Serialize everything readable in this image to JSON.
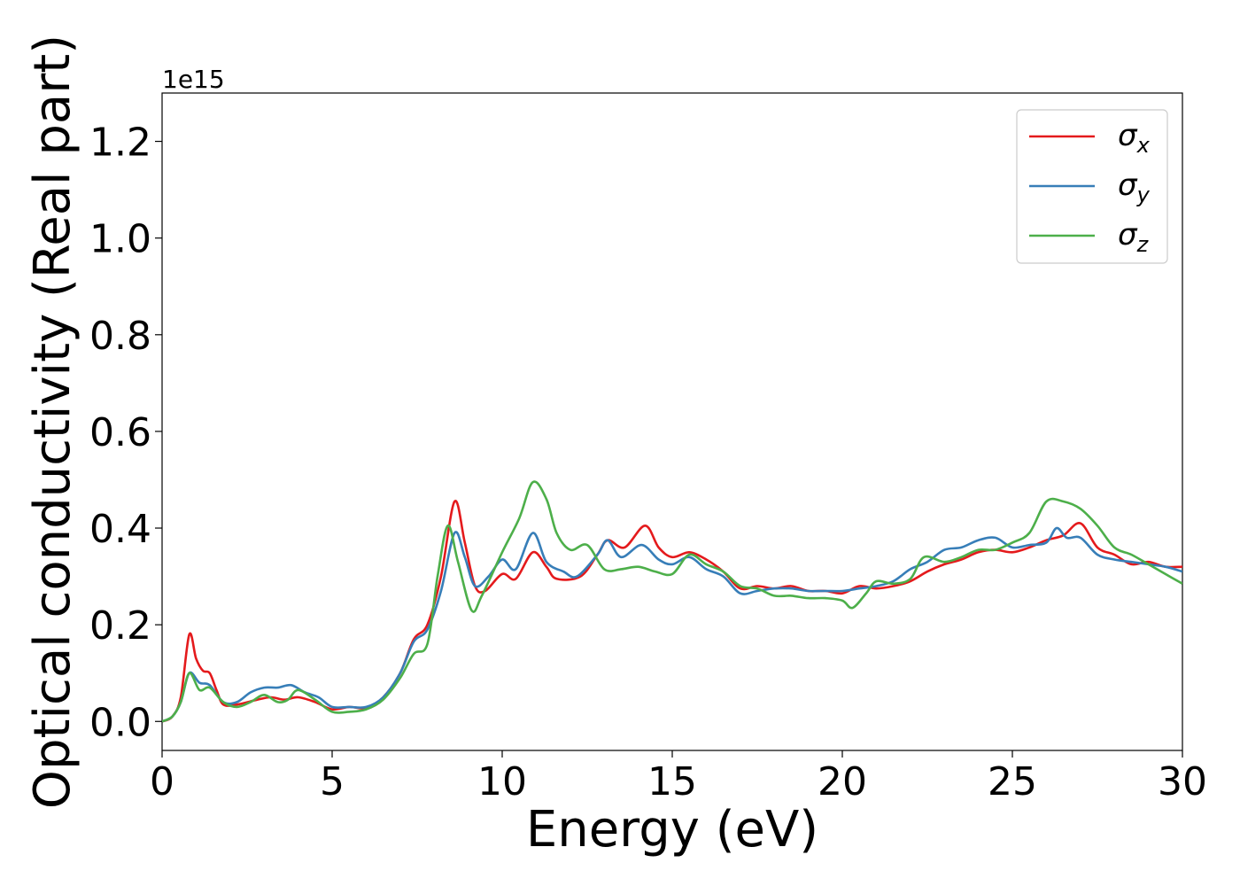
{
  "chart_data": {
    "type": "line",
    "xlabel": "Energy (eV)",
    "ylabel": "Optical conductivity (Real part)",
    "y_offset_label": "1e15",
    "xlim": [
      0,
      30
    ],
    "ylim": [
      -0.06,
      1.3
    ],
    "x_ticks": [
      0,
      5,
      10,
      15,
      20,
      25,
      30
    ],
    "x_tick_labels": [
      "0",
      "5",
      "10",
      "15",
      "20",
      "25",
      "30"
    ],
    "y_ticks": [
      0.0,
      0.2,
      0.4,
      0.6,
      0.8,
      1.0,
      1.2
    ],
    "y_tick_labels": [
      "0.0",
      "0.2",
      "0.4",
      "0.6",
      "0.8",
      "1.0",
      "1.2"
    ],
    "grid": false,
    "legend_position": "top-right",
    "series": [
      {
        "name": "σ",
        "sub": "x",
        "color": "#e41a1c",
        "points": [
          [
            0,
            0
          ],
          [
            0.3,
            0.01
          ],
          [
            0.55,
            0.05
          ],
          [
            0.8,
            0.18
          ],
          [
            1.0,
            0.13
          ],
          [
            1.2,
            0.105
          ],
          [
            1.4,
            0.1
          ],
          [
            1.6,
            0.065
          ],
          [
            1.8,
            0.035
          ],
          [
            2.2,
            0.035
          ],
          [
            2.8,
            0.045
          ],
          [
            3.2,
            0.05
          ],
          [
            3.6,
            0.045
          ],
          [
            4.0,
            0.05
          ],
          [
            4.5,
            0.04
          ],
          [
            5.0,
            0.025
          ],
          [
            5.5,
            0.03
          ],
          [
            6.0,
            0.028
          ],
          [
            6.5,
            0.05
          ],
          [
            7.0,
            0.1
          ],
          [
            7.4,
            0.17
          ],
          [
            7.8,
            0.2
          ],
          [
            8.2,
            0.3
          ],
          [
            8.6,
            0.455
          ],
          [
            8.9,
            0.37
          ],
          [
            9.2,
            0.28
          ],
          [
            9.5,
            0.27
          ],
          [
            10.0,
            0.305
          ],
          [
            10.4,
            0.295
          ],
          [
            10.9,
            0.35
          ],
          [
            11.3,
            0.32
          ],
          [
            11.6,
            0.295
          ],
          [
            12.3,
            0.3
          ],
          [
            12.8,
            0.345
          ],
          [
            13.1,
            0.375
          ],
          [
            13.6,
            0.36
          ],
          [
            14.2,
            0.405
          ],
          [
            14.6,
            0.36
          ],
          [
            15.0,
            0.34
          ],
          [
            15.5,
            0.35
          ],
          [
            16.0,
            0.335
          ],
          [
            16.5,
            0.31
          ],
          [
            17.0,
            0.275
          ],
          [
            17.5,
            0.28
          ],
          [
            18.0,
            0.275
          ],
          [
            18.5,
            0.28
          ],
          [
            19.0,
            0.27
          ],
          [
            19.5,
            0.27
          ],
          [
            20.0,
            0.265
          ],
          [
            20.5,
            0.28
          ],
          [
            21.0,
            0.275
          ],
          [
            21.5,
            0.28
          ],
          [
            22.0,
            0.29
          ],
          [
            22.5,
            0.31
          ],
          [
            23.0,
            0.325
          ],
          [
            23.5,
            0.335
          ],
          [
            24.0,
            0.35
          ],
          [
            24.5,
            0.355
          ],
          [
            25.0,
            0.35
          ],
          [
            25.5,
            0.36
          ],
          [
            26.0,
            0.375
          ],
          [
            26.5,
            0.385
          ],
          [
            27.0,
            0.41
          ],
          [
            27.5,
            0.36
          ],
          [
            28.0,
            0.345
          ],
          [
            28.5,
            0.325
          ],
          [
            29.0,
            0.33
          ],
          [
            29.5,
            0.32
          ],
          [
            30.0,
            0.32
          ]
        ]
      },
      {
        "name": "σ",
        "sub": "y",
        "color": "#377eb8",
        "points": [
          [
            0,
            0
          ],
          [
            0.3,
            0.01
          ],
          [
            0.55,
            0.04
          ],
          [
            0.8,
            0.1
          ],
          [
            1.1,
            0.08
          ],
          [
            1.4,
            0.075
          ],
          [
            1.8,
            0.04
          ],
          [
            2.2,
            0.04
          ],
          [
            2.6,
            0.06
          ],
          [
            3.0,
            0.07
          ],
          [
            3.4,
            0.07
          ],
          [
            3.8,
            0.075
          ],
          [
            4.2,
            0.06
          ],
          [
            4.6,
            0.05
          ],
          [
            5.0,
            0.03
          ],
          [
            5.5,
            0.03
          ],
          [
            6.0,
            0.03
          ],
          [
            6.5,
            0.05
          ],
          [
            7.0,
            0.1
          ],
          [
            7.4,
            0.165
          ],
          [
            7.8,
            0.19
          ],
          [
            8.2,
            0.27
          ],
          [
            8.6,
            0.39
          ],
          [
            8.9,
            0.34
          ],
          [
            9.2,
            0.28
          ],
          [
            9.6,
            0.3
          ],
          [
            10.0,
            0.335
          ],
          [
            10.4,
            0.315
          ],
          [
            10.9,
            0.39
          ],
          [
            11.3,
            0.33
          ],
          [
            11.8,
            0.31
          ],
          [
            12.2,
            0.3
          ],
          [
            12.8,
            0.345
          ],
          [
            13.1,
            0.375
          ],
          [
            13.5,
            0.34
          ],
          [
            14.1,
            0.365
          ],
          [
            14.6,
            0.335
          ],
          [
            15.0,
            0.325
          ],
          [
            15.5,
            0.34
          ],
          [
            16.0,
            0.315
          ],
          [
            16.5,
            0.3
          ],
          [
            17.0,
            0.265
          ],
          [
            17.5,
            0.27
          ],
          [
            18.0,
            0.275
          ],
          [
            18.5,
            0.275
          ],
          [
            19.0,
            0.27
          ],
          [
            19.5,
            0.27
          ],
          [
            20.0,
            0.27
          ],
          [
            20.5,
            0.275
          ],
          [
            21.0,
            0.28
          ],
          [
            21.5,
            0.29
          ],
          [
            22.0,
            0.315
          ],
          [
            22.5,
            0.33
          ],
          [
            23.0,
            0.355
          ],
          [
            23.5,
            0.36
          ],
          [
            24.0,
            0.375
          ],
          [
            24.5,
            0.38
          ],
          [
            25.0,
            0.36
          ],
          [
            25.5,
            0.365
          ],
          [
            26.0,
            0.37
          ],
          [
            26.3,
            0.4
          ],
          [
            26.6,
            0.38
          ],
          [
            27.0,
            0.38
          ],
          [
            27.5,
            0.345
          ],
          [
            28.0,
            0.335
          ],
          [
            28.5,
            0.33
          ],
          [
            29.0,
            0.325
          ],
          [
            29.5,
            0.32
          ],
          [
            30.0,
            0.31
          ]
        ]
      },
      {
        "name": "σ",
        "sub": "z",
        "color": "#4daf4a",
        "points": [
          [
            0,
            0
          ],
          [
            0.3,
            0.01
          ],
          [
            0.55,
            0.04
          ],
          [
            0.8,
            0.1
          ],
          [
            1.1,
            0.065
          ],
          [
            1.4,
            0.07
          ],
          [
            1.8,
            0.04
          ],
          [
            2.2,
            0.03
          ],
          [
            2.6,
            0.04
          ],
          [
            3.0,
            0.055
          ],
          [
            3.4,
            0.04
          ],
          [
            3.7,
            0.045
          ],
          [
            4.0,
            0.065
          ],
          [
            4.5,
            0.045
          ],
          [
            5.0,
            0.02
          ],
          [
            5.5,
            0.02
          ],
          [
            6.0,
            0.025
          ],
          [
            6.5,
            0.045
          ],
          [
            7.0,
            0.09
          ],
          [
            7.4,
            0.14
          ],
          [
            7.8,
            0.16
          ],
          [
            8.1,
            0.3
          ],
          [
            8.4,
            0.405
          ],
          [
            8.7,
            0.33
          ],
          [
            9.1,
            0.23
          ],
          [
            9.4,
            0.26
          ],
          [
            10.0,
            0.35
          ],
          [
            10.5,
            0.42
          ],
          [
            10.9,
            0.495
          ],
          [
            11.3,
            0.46
          ],
          [
            11.6,
            0.39
          ],
          [
            12.0,
            0.355
          ],
          [
            12.5,
            0.365
          ],
          [
            13.0,
            0.315
          ],
          [
            13.5,
            0.315
          ],
          [
            14.0,
            0.32
          ],
          [
            14.5,
            0.31
          ],
          [
            15.0,
            0.305
          ],
          [
            15.5,
            0.345
          ],
          [
            16.0,
            0.325
          ],
          [
            16.5,
            0.31
          ],
          [
            17.0,
            0.28
          ],
          [
            17.5,
            0.275
          ],
          [
            18.0,
            0.26
          ],
          [
            18.5,
            0.26
          ],
          [
            19.0,
            0.255
          ],
          [
            19.5,
            0.255
          ],
          [
            20.0,
            0.25
          ],
          [
            20.3,
            0.235
          ],
          [
            20.7,
            0.265
          ],
          [
            21.0,
            0.29
          ],
          [
            21.5,
            0.285
          ],
          [
            22.0,
            0.295
          ],
          [
            22.4,
            0.34
          ],
          [
            23.0,
            0.33
          ],
          [
            23.5,
            0.34
          ],
          [
            24.0,
            0.355
          ],
          [
            24.5,
            0.355
          ],
          [
            25.0,
            0.37
          ],
          [
            25.5,
            0.39
          ],
          [
            26.0,
            0.455
          ],
          [
            26.5,
            0.455
          ],
          [
            27.0,
            0.44
          ],
          [
            27.5,
            0.405
          ],
          [
            28.0,
            0.36
          ],
          [
            28.5,
            0.345
          ],
          [
            29.0,
            0.325
          ],
          [
            29.5,
            0.305
          ],
          [
            30.0,
            0.285
          ]
        ]
      }
    ]
  }
}
